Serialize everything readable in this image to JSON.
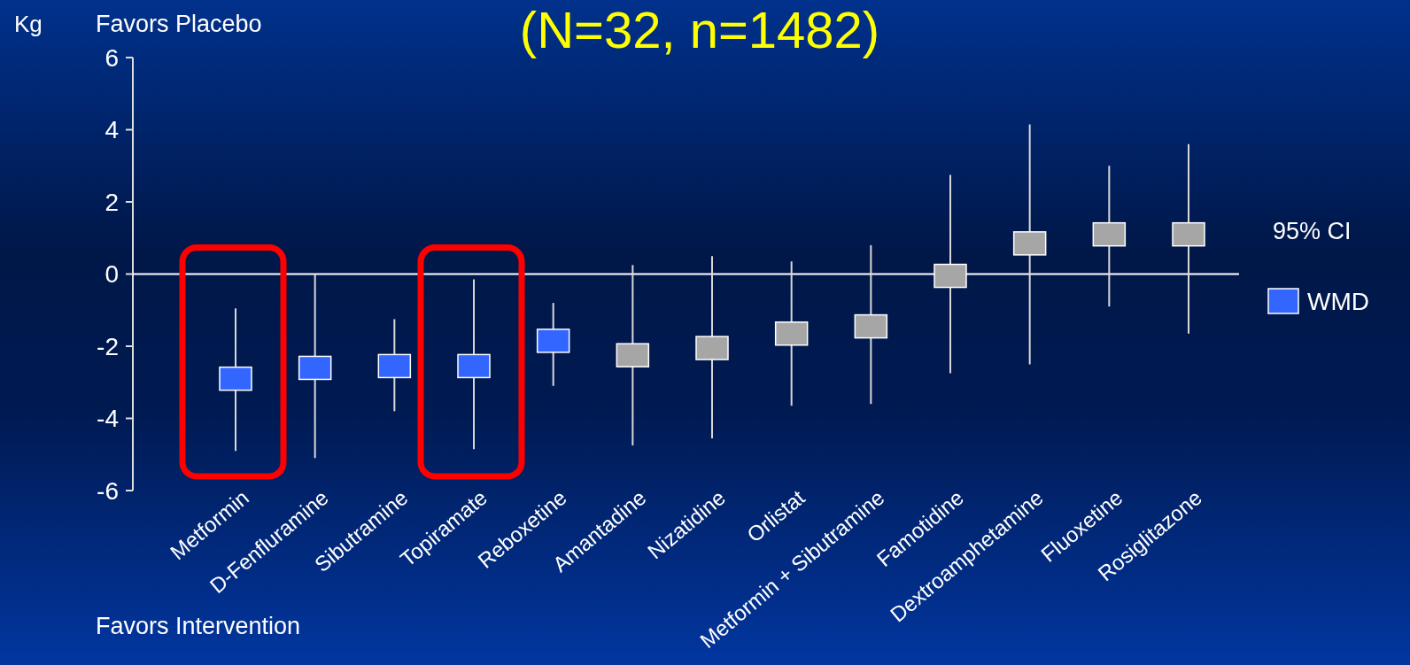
{
  "chart_data": {
    "type": "scatter",
    "title": "(N=32, n=1482)",
    "ylabel": "Kg",
    "categories": [
      "Metformin",
      "D-Fenfluramine",
      "Sibutramine",
      "Topiramate",
      "Reboxetine",
      "Amantadine",
      "Nizatidine",
      "Orlistat",
      "Metformin + Sibutramine",
      "Famotidine",
      "Dextroamphetamine",
      "Fluoxetine",
      "Rosiglitazone"
    ],
    "series": [
      {
        "name": "WMD",
        "color": "#3366ff",
        "colors": [
          "#3366ff",
          "#3366ff",
          "#3366ff",
          "#3366ff",
          "#3366ff",
          "#a6a6a6",
          "#a6a6a6",
          "#a6a6a6",
          "#a6a6a6",
          "#a6a6a6",
          "#a6a6a6",
          "#a6a6a6",
          "#a6a6a6"
        ],
        "values": [
          -2.9,
          -2.6,
          -2.55,
          -2.55,
          -1.85,
          -2.25,
          -2.05,
          -1.65,
          -1.45,
          -0.05,
          0.85,
          1.1,
          1.1
        ],
        "errors": [
          [
            -4.9,
            -0.95
          ],
          [
            -5.1,
            0
          ],
          [
            -3.8,
            -1.25
          ],
          [
            -4.85,
            -0.15
          ],
          [
            -3.1,
            -0.8
          ],
          [
            -4.75,
            0.25
          ],
          [
            -4.55,
            0.5
          ],
          [
            -3.65,
            0.35
          ],
          [
            -3.6,
            0.8
          ],
          [
            -2.75,
            2.75
          ],
          [
            -2.5,
            4.15
          ],
          [
            -0.9,
            3.0
          ],
          [
            -1.65,
            3.6
          ]
        ]
      }
    ],
    "ylim": [
      -6,
      6
    ],
    "yticks": [
      -6,
      -4,
      -2,
      0,
      2,
      4,
      6
    ],
    "marker": "square",
    "legend": "right",
    "ref_lines": [
      {
        "axis": "y",
        "value": 0,
        "color": "#ffffff"
      }
    ],
    "annotations": [
      "Favors Placebo",
      "Favors Intervention",
      "95% CI"
    ]
  }
}
